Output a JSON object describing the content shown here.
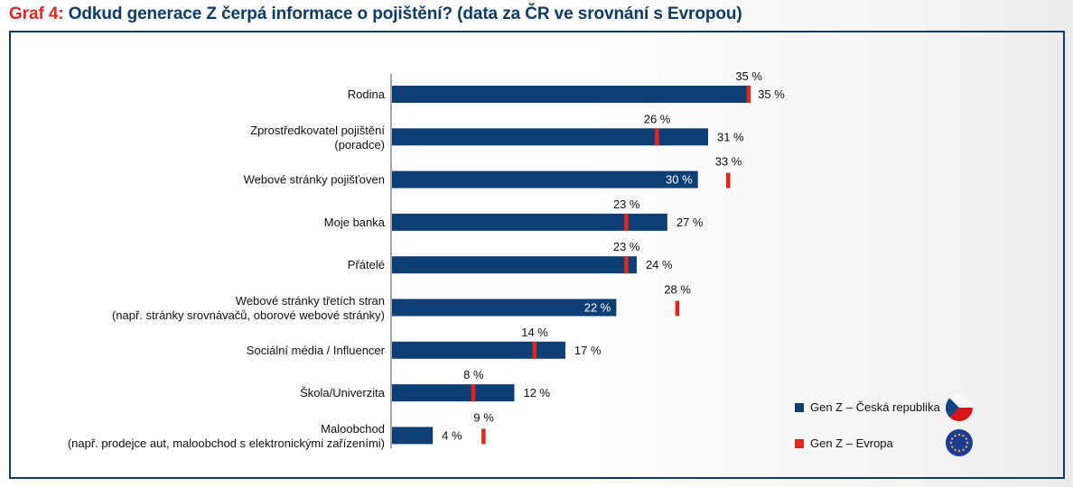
{
  "header": {
    "prefix": "Graf 4:",
    "title": "Odkud generace Z čerpá informace o pojištění? (data za ČR ve srovnání s Evropou)"
  },
  "colors": {
    "cz": "#0d3f74",
    "eu": "#e3261c",
    "frame": "#0d3a6b"
  },
  "legend": {
    "cz_label": "Gen Z – Česká republika",
    "eu_label": "Gen Z – Evropa",
    "cz_icon": "czech-flag-icon",
    "eu_icon": "eu-flag-icon"
  },
  "chart_data": {
    "type": "bar",
    "orientation": "horizontal",
    "title": "Odkud generace Z čerpá informace o pojištění? (data za ČR ve srovnání s Evropou)",
    "xlabel": "",
    "ylabel": "",
    "xlim": [
      0,
      35
    ],
    "grid": false,
    "legend_position": "bottom-right",
    "unit": "%",
    "categories": [
      [
        "Rodina"
      ],
      [
        "Zprostředkovatel pojištění",
        "(poradce)"
      ],
      [
        "Webové stránky pojišťoven"
      ],
      [
        "Moje banka"
      ],
      [
        "Přátelé"
      ],
      [
        "Webové stránky třetích stran",
        "(např. stránky srovnávačů, oborové webové stránky)"
      ],
      [
        "Sociální média / Influencer"
      ],
      [
        "Škola/Univerzita"
      ],
      [
        "Maloobchod",
        "(např. prodejce aut, maloobchod s elektronickými zařízeními)"
      ]
    ],
    "series": [
      {
        "name": "Gen Z – Česká republika",
        "type": "bar",
        "values": [
          35,
          31,
          30,
          27,
          24,
          22,
          17,
          12,
          4
        ]
      },
      {
        "name": "Gen Z – Evropa",
        "type": "marker",
        "values": [
          35,
          26,
          33,
          23,
          23,
          28,
          14,
          8,
          9
        ]
      }
    ],
    "cz_label_inside": [
      false,
      false,
      true,
      false,
      false,
      true,
      false,
      false,
      false
    ]
  }
}
